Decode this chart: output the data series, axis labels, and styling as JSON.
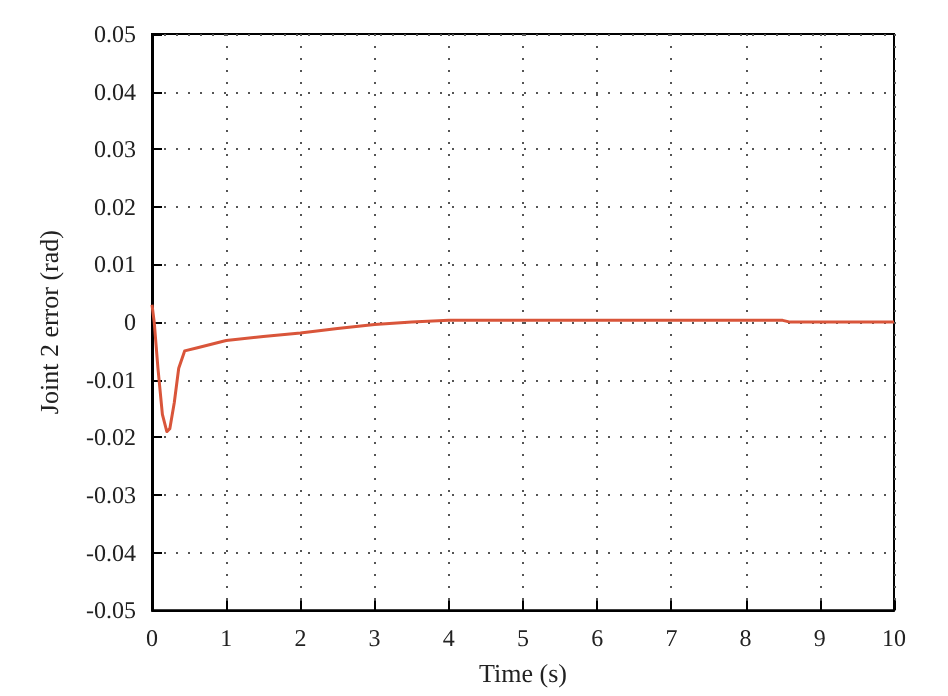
{
  "chart_data": {
    "type": "line",
    "xlabel": "Time (s)",
    "ylabel": "Joint 2 error (rad)",
    "series": [
      {
        "color": "#d9553a",
        "x": [
          0,
          0.03,
          0.08,
          0.14,
          0.2,
          0.24,
          0.3,
          0.36,
          0.44,
          0.6,
          1,
          1.5,
          2,
          2.5,
          3,
          3.5,
          4,
          5,
          6,
          7,
          8,
          8.5,
          8.6,
          9,
          10
        ],
        "values": [
          0.003,
          0.0,
          -0.008,
          -0.016,
          -0.019,
          -0.0185,
          -0.014,
          -0.008,
          -0.005,
          -0.0045,
          -0.0032,
          -0.0025,
          -0.0019,
          -0.0011,
          -0.0004,
          0.0,
          0.0003,
          0.0003,
          0.0003,
          0.0003,
          0.0003,
          0.0003,
          0.0,
          0.0,
          0.0
        ]
      }
    ],
    "xlim": [
      0,
      10
    ],
    "xticks": [
      0,
      1,
      2,
      3,
      4,
      5,
      6,
      7,
      8,
      9,
      10
    ],
    "ylim": [
      -0.05,
      0.05
    ],
    "yticks": [
      -0.05,
      -0.04,
      -0.03,
      -0.02,
      -0.01,
      0,
      0.01,
      0.02,
      0.03,
      0.04,
      0.05
    ],
    "grid": true,
    "marker": "none",
    "line_style": "solid"
  }
}
